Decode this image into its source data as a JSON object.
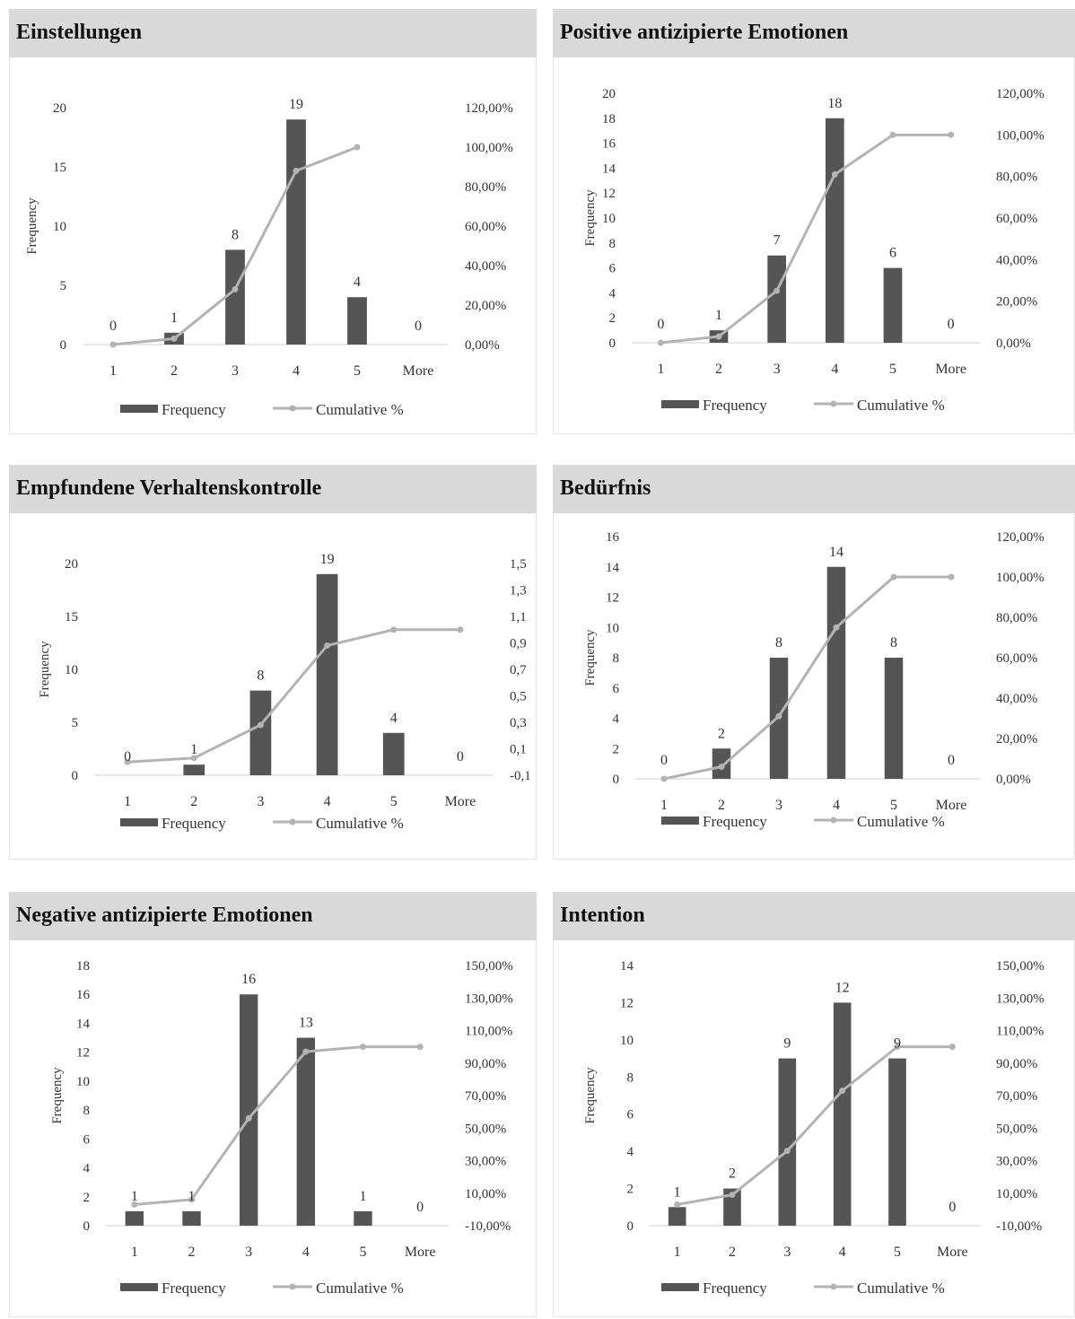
{
  "legend": {
    "bar_label": "Frequency",
    "line_label": "Cumulative %"
  },
  "colors": {
    "bar": "#555555",
    "line": "#b3b3b3",
    "header": "#d9d9d9"
  },
  "chart_data": [
    {
      "type": "bar",
      "title": "Einstellungen",
      "categories": [
        "1",
        "2",
        "3",
        "4",
        "5",
        "More"
      ],
      "series": [
        {
          "name": "Frequency",
          "values": [
            0,
            1,
            8,
            19,
            4,
            0
          ]
        },
        {
          "name": "Cumulative %",
          "type": "line",
          "values": [
            0.0,
            0.03,
            0.28,
            0.88,
            1.0,
            null
          ]
        }
      ],
      "data_labels": [
        "0",
        "1",
        "8",
        "19",
        "4",
        "0"
      ],
      "ylabel": "Frequency",
      "ylim": [
        0,
        20
      ],
      "yticks": [
        "0",
        "5",
        "10",
        "15",
        "20"
      ],
      "y2lim": [
        0,
        1.2
      ],
      "y2ticks": [
        "0,00%",
        "20,00%",
        "40,00%",
        "60,00%",
        "80,00%",
        "100,00%",
        "120,00%"
      ],
      "legend_position": "bottom"
    },
    {
      "type": "bar",
      "title": "Positive antizipierte Emotionen",
      "categories": [
        "1",
        "2",
        "3",
        "4",
        "5",
        "More"
      ],
      "series": [
        {
          "name": "Frequency",
          "values": [
            0,
            1,
            7,
            18,
            6,
            0
          ]
        },
        {
          "name": "Cumulative %",
          "type": "line",
          "values": [
            0.0,
            0.03,
            0.25,
            0.81,
            1.0,
            1.0
          ]
        }
      ],
      "data_labels": [
        "0",
        "1",
        "7",
        "18",
        "6",
        "0"
      ],
      "ylabel": "Frequency",
      "ylim": [
        0,
        20
      ],
      "yticks": [
        "0",
        "2",
        "4",
        "6",
        "8",
        "10",
        "12",
        "14",
        "16",
        "18",
        "20"
      ],
      "y2lim": [
        0,
        1.2
      ],
      "y2ticks": [
        "0,00%",
        "20,00%",
        "40,00%",
        "60,00%",
        "80,00%",
        "100,00%",
        "120,00%"
      ],
      "legend_position": "bottom"
    },
    {
      "type": "bar",
      "title": "Empfundene Verhaltenskontrolle",
      "categories": [
        "1",
        "2",
        "3",
        "4",
        "5",
        "More"
      ],
      "series": [
        {
          "name": "Frequency",
          "values": [
            0,
            1,
            8,
            19,
            4,
            0
          ]
        },
        {
          "name": "Cumulative %",
          "type": "line",
          "values": [
            0.0,
            0.03,
            0.28,
            0.88,
            1.0,
            1.0
          ]
        }
      ],
      "data_labels": [
        "0",
        "1",
        "8",
        "19",
        "4",
        "0"
      ],
      "ylabel": "Frequency",
      "ylim": [
        0,
        20
      ],
      "yticks": [
        "0",
        "5",
        "10",
        "15",
        "20"
      ],
      "y2lim": [
        -0.1,
        1.5
      ],
      "y2ticks": [
        "-0,1",
        "0,1",
        "0,3",
        "0,5",
        "0,7",
        "0,9",
        "1,1",
        "1,3",
        "1,5"
      ],
      "legend_position": "bottom"
    },
    {
      "type": "bar",
      "title": "Bedürfnis",
      "categories": [
        "1",
        "2",
        "3",
        "4",
        "5",
        "More"
      ],
      "series": [
        {
          "name": "Frequency",
          "values": [
            0,
            2,
            8,
            14,
            8,
            0
          ]
        },
        {
          "name": "Cumulative %",
          "type": "line",
          "values": [
            0.0,
            0.06,
            0.31,
            0.75,
            1.0,
            1.0
          ]
        }
      ],
      "data_labels": [
        "0",
        "2",
        "8",
        "14",
        "8",
        "0"
      ],
      "ylabel": "Frequency",
      "ylim": [
        0,
        16
      ],
      "yticks": [
        "0",
        "2",
        "4",
        "6",
        "8",
        "10",
        "12",
        "14",
        "16"
      ],
      "y2lim": [
        0,
        1.2
      ],
      "y2ticks": [
        "0,00%",
        "20,00%",
        "40,00%",
        "60,00%",
        "80,00%",
        "100,00%",
        "120,00%"
      ],
      "legend_position": "bottom"
    },
    {
      "type": "bar",
      "title": "Negative antizipierte Emotionen",
      "categories": [
        "1",
        "2",
        "3",
        "4",
        "5",
        "More"
      ],
      "series": [
        {
          "name": "Frequency",
          "values": [
            1,
            1,
            16,
            13,
            1,
            0
          ]
        },
        {
          "name": "Cumulative %",
          "type": "line",
          "values": [
            0.03,
            0.06,
            0.56,
            0.97,
            1.0,
            1.0
          ]
        }
      ],
      "data_labels": [
        "1",
        "1",
        "16",
        "13",
        "1",
        "0"
      ],
      "ylabel": "Frequency",
      "ylim": [
        0,
        18
      ],
      "yticks": [
        "0",
        "2",
        "4",
        "6",
        "8",
        "10",
        "12",
        "14",
        "16",
        "18"
      ],
      "y2lim": [
        -0.1,
        1.5
      ],
      "y2ticks": [
        "-10,00%",
        "10,00%",
        "30,00%",
        "50,00%",
        "70,00%",
        "90,00%",
        "110,00%",
        "130,00%",
        "150,00%"
      ],
      "legend_position": "bottom"
    },
    {
      "type": "bar",
      "title": "Intention",
      "categories": [
        "1",
        "2",
        "3",
        "4",
        "5",
        "More"
      ],
      "series": [
        {
          "name": "Frequency",
          "values": [
            1,
            2,
            9,
            12,
            9,
            0
          ]
        },
        {
          "name": "Cumulative %",
          "type": "line",
          "values": [
            0.03,
            0.09,
            0.36,
            0.73,
            1.0,
            1.0
          ]
        }
      ],
      "data_labels": [
        "1",
        "2",
        "9",
        "12",
        "9",
        "0"
      ],
      "ylabel": "Frequency",
      "ylim": [
        0,
        14
      ],
      "yticks": [
        "0",
        "2",
        "4",
        "6",
        "8",
        "10",
        "12",
        "14"
      ],
      "y2lim": [
        -0.1,
        1.5
      ],
      "y2ticks": [
        "-10,00%",
        "10,00%",
        "30,00%",
        "50,00%",
        "70,00%",
        "90,00%",
        "110,00%",
        "130,00%",
        "150,00%"
      ],
      "legend_position": "bottom"
    }
  ]
}
